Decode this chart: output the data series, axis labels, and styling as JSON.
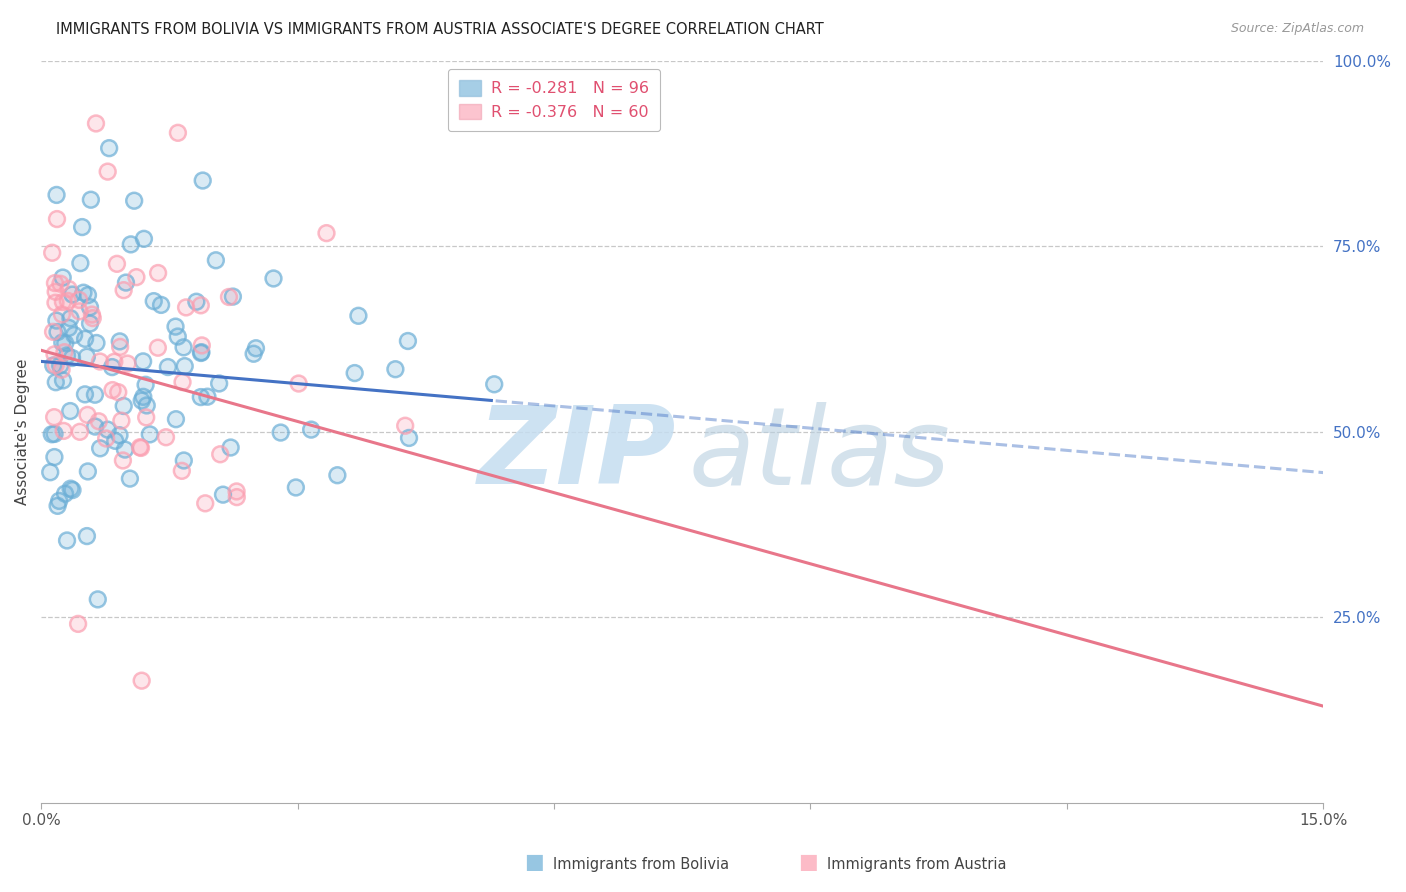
{
  "title": "IMMIGRANTS FROM BOLIVIA VS IMMIGRANTS FROM AUSTRIA ASSOCIATE'S DEGREE CORRELATION CHART",
  "source": "Source: ZipAtlas.com",
  "ylabel_left": "Associate's Degree",
  "x_min": 0.0,
  "x_max": 0.15,
  "y_min": 0.0,
  "y_max": 1.0,
  "bolivia_color": "#6baed6",
  "austria_color": "#fb9eb0",
  "bolivia_R": -0.281,
  "bolivia_N": 96,
  "austria_R": -0.376,
  "austria_N": 60,
  "bolivia_line_color": "#4472c4",
  "austria_line_color": "#e8768a",
  "background_color": "#ffffff",
  "grid_color": "#c8c8c8",
  "right_axis_color": "#4472c4",
  "legend_text_color": "#e05070",
  "legend_rn_color": "#e05070",
  "source_color": "#999999",
  "title_color": "#222222",
  "bolivia_intercept": 0.595,
  "bolivia_slope": -1.0,
  "austria_intercept": 0.61,
  "austria_slope": -3.2
}
